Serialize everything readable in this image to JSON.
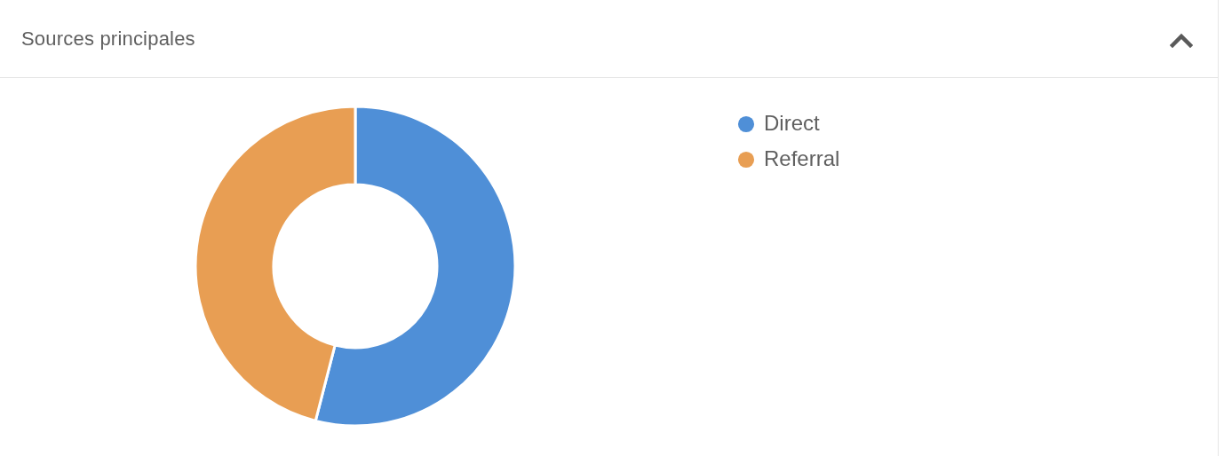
{
  "chart_data": {
    "type": "donut",
    "title": "Sources principales",
    "categories": [
      "Direct",
      "Referral"
    ],
    "values": [
      54,
      46
    ],
    "colors": [
      "#4f8fd7",
      "#e89e53"
    ],
    "legend": "top right"
  }
}
